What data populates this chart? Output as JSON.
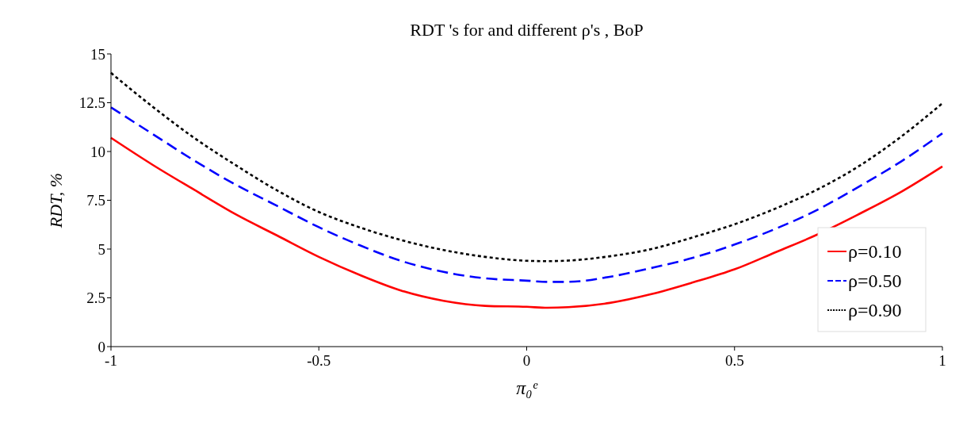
{
  "chart_data": {
    "type": "line",
    "title": "RDT 's for and different ρ's , BoP",
    "xlabel": "π₀ᵉ",
    "ylabel": "RDT, %",
    "x": [
      -1,
      -0.9,
      -0.8,
      -0.7,
      -0.6,
      -0.5,
      -0.4,
      -0.3,
      -0.2,
      -0.1,
      0,
      0.05,
      0.1,
      0.2,
      0.3,
      0.4,
      0.5,
      0.6,
      0.7,
      0.8,
      0.9,
      1
    ],
    "series": [
      {
        "name": "ρ=0.10",
        "color": "#ff0000",
        "line_style": "solid",
        "values": [
          10.7,
          9.32,
          8.04,
          6.78,
          5.69,
          4.6,
          3.66,
          2.86,
          2.35,
          2.09,
          2.04,
          1.99,
          2.02,
          2.24,
          2.69,
          3.29,
          3.96,
          4.85,
          5.75,
          6.8,
          7.92,
          9.23
        ]
      },
      {
        "name": "ρ=0.50",
        "color": "#0000ff",
        "line_style": "dashed",
        "values": [
          12.26,
          10.9,
          9.54,
          8.3,
          7.21,
          6.12,
          5.18,
          4.38,
          3.83,
          3.5,
          3.38,
          3.32,
          3.32,
          3.58,
          4.03,
          4.55,
          5.23,
          6.05,
          7.02,
          8.21,
          9.48,
          10.93
        ]
      },
      {
        "name": "ρ=0.90",
        "color": "#000000",
        "line_style": "dotted",
        "values": [
          14.03,
          12.3,
          10.7,
          9.3,
          8.0,
          6.9,
          6.1,
          5.45,
          4.95,
          4.6,
          4.4,
          4.38,
          4.41,
          4.63,
          5.0,
          5.6,
          6.27,
          7.09,
          8.06,
          9.26,
          10.75,
          12.47
        ]
      }
    ],
    "xlim": [
      -1,
      1
    ],
    "xticks": [
      -1,
      -0.5,
      0,
      0.5,
      1
    ],
    "ylim": [
      0,
      15
    ],
    "yticks": [
      0,
      2.5,
      5,
      7.5,
      10,
      12.5,
      15
    ],
    "legend": "bottom right",
    "grid": false
  }
}
